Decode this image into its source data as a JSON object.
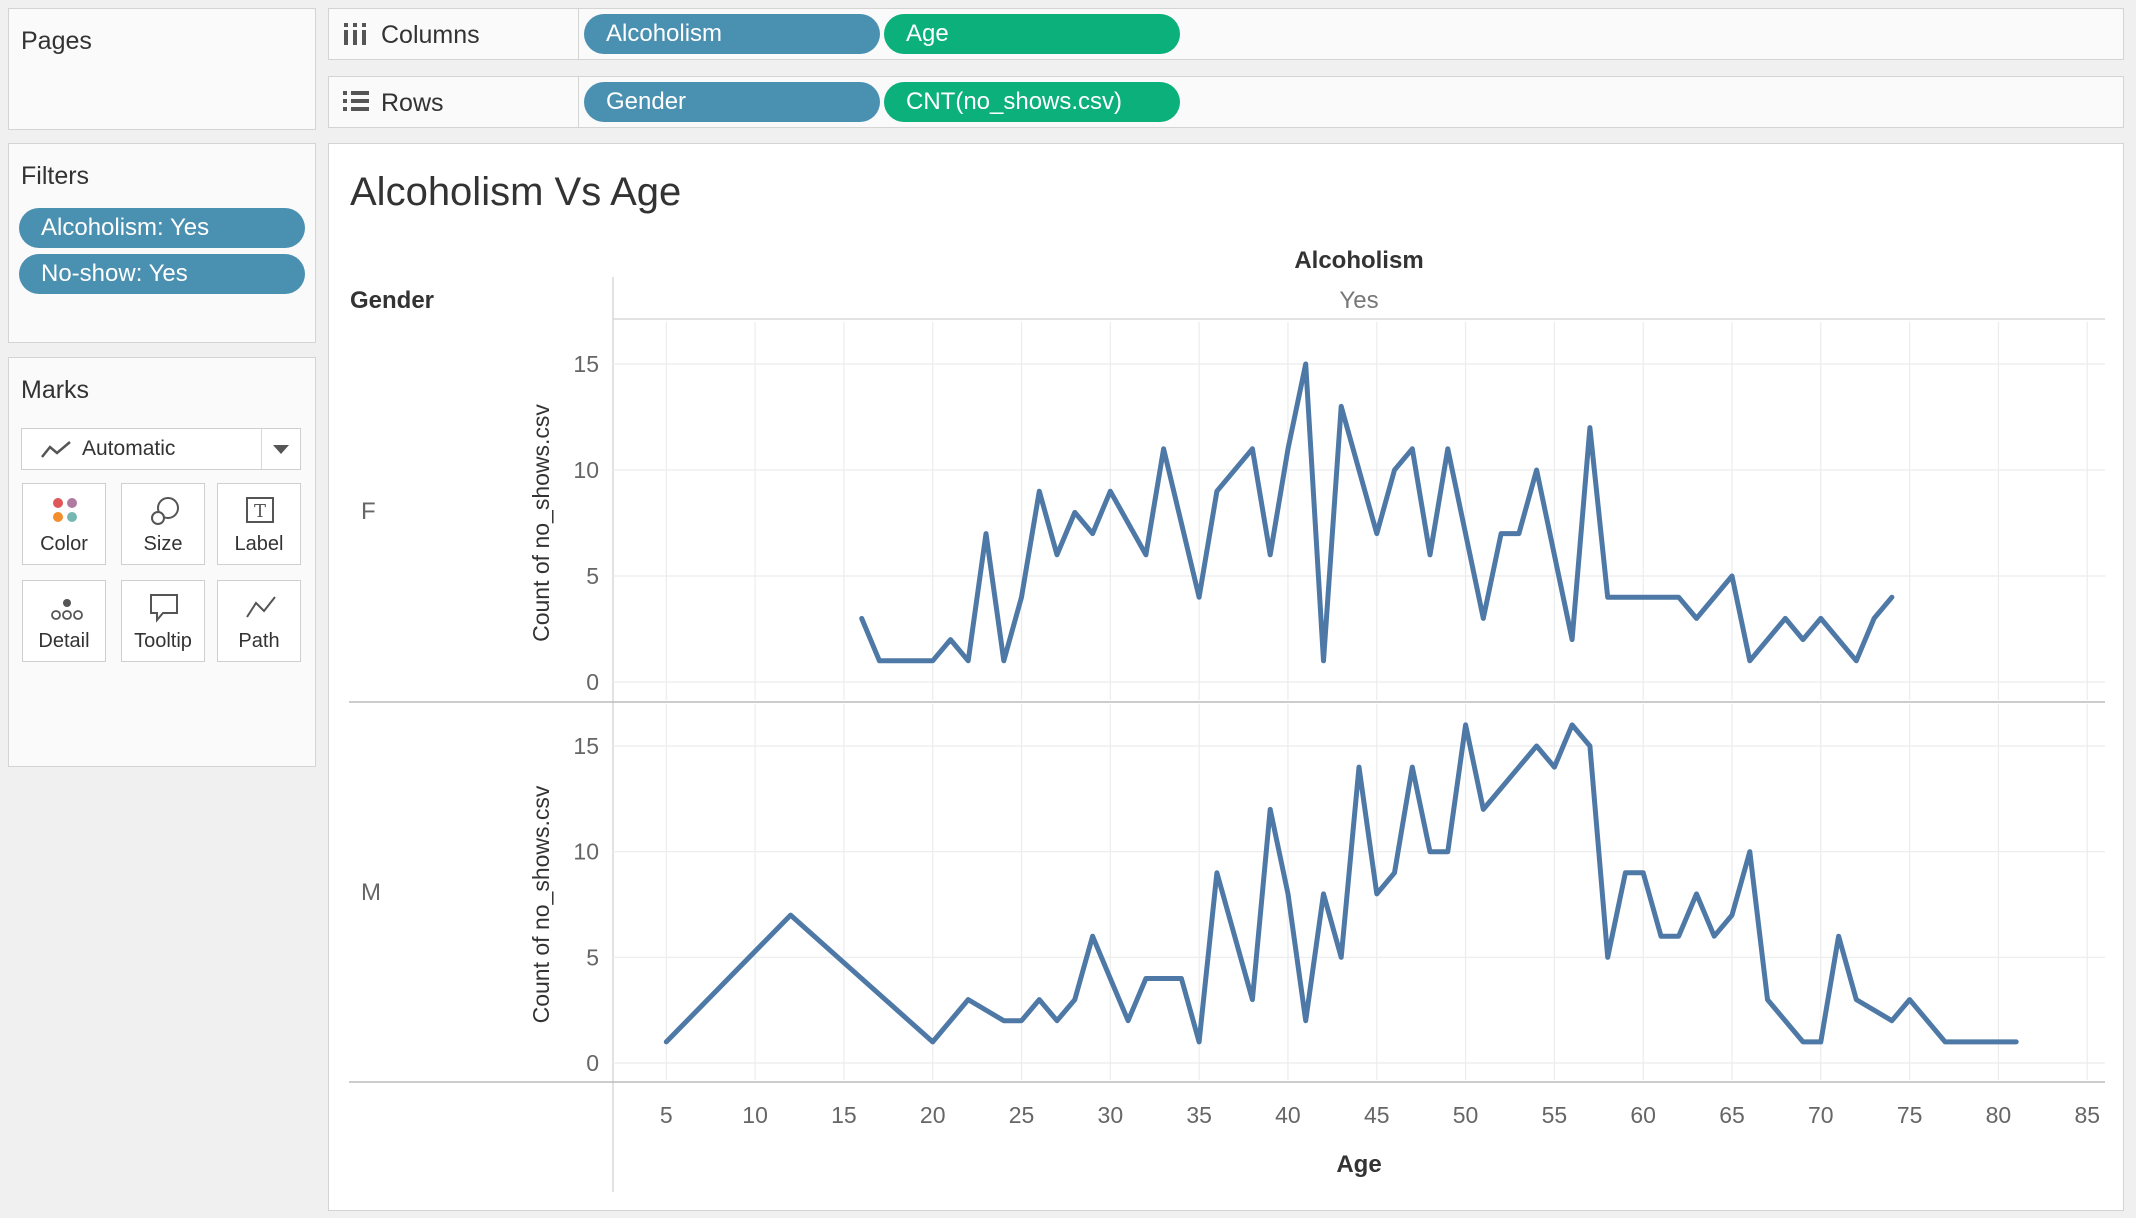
{
  "pages": {
    "title": "Pages"
  },
  "filters": {
    "title": "Filters",
    "items": [
      {
        "label": "Alcoholism: Yes"
      },
      {
        "label": "No-show: Yes"
      }
    ]
  },
  "marks": {
    "title": "Marks",
    "type_label": "Automatic",
    "buttons": [
      {
        "label": "Color",
        "icon": "color-icon"
      },
      {
        "label": "Size",
        "icon": "size-icon"
      },
      {
        "label": "Label",
        "icon": "label-icon"
      },
      {
        "label": "Detail",
        "icon": "detail-icon"
      },
      {
        "label": "Tooltip",
        "icon": "tooltip-icon"
      },
      {
        "label": "Path",
        "icon": "path-icon"
      }
    ]
  },
  "shelves": {
    "columns": {
      "label": "Columns",
      "pills": [
        "Alcoholism",
        "Age"
      ]
    },
    "rows": {
      "label": "Rows",
      "pills": [
        "Gender",
        "CNT(no_shows.csv)"
      ]
    }
  },
  "colors": {
    "dimension": "#4a90b0",
    "measure": "#0bb07a",
    "line": "#4e79a7"
  },
  "chart_data": {
    "type": "line",
    "title": "Alcoholism Vs Age",
    "column_header": "Alcoholism",
    "column_value": "Yes",
    "row_header": "Gender",
    "xlabel": "Age",
    "ylabel": "Count of no_shows.csv",
    "xlim": [
      2,
      86
    ],
    "ylim": [
      0,
      16
    ],
    "x_ticks": [
      5,
      10,
      15,
      20,
      25,
      30,
      35,
      40,
      45,
      50,
      55,
      60,
      65,
      70,
      75,
      80,
      85
    ],
    "y_ticks": [
      0,
      5,
      10,
      15
    ],
    "grid": true,
    "panels": [
      {
        "row_label": "F",
        "x": [
          16,
          17,
          18,
          19,
          20,
          21,
          22,
          23,
          24,
          25,
          26,
          27,
          28,
          29,
          30,
          32,
          33,
          35,
          36,
          38,
          39,
          40,
          41,
          42,
          43,
          45,
          46,
          47,
          48,
          49,
          51,
          52,
          53,
          54,
          56,
          57,
          58,
          59,
          60,
          61,
          62,
          63,
          65,
          66,
          68,
          69,
          70,
          72,
          73,
          74
        ],
        "y": [
          3,
          1,
          1,
          1,
          1,
          2,
          1,
          7,
          1,
          4,
          9,
          6,
          8,
          7,
          9,
          6,
          11,
          4,
          9,
          11,
          6,
          11,
          15,
          1,
          13,
          7,
          10,
          11,
          6,
          11,
          3,
          7,
          7,
          10,
          2,
          12,
          4,
          4,
          4,
          4,
          4,
          3,
          5,
          1,
          3,
          2,
          3,
          1,
          3,
          4
        ]
      },
      {
        "row_label": "M",
        "x": [
          5,
          12,
          20,
          22,
          24,
          25,
          26,
          27,
          28,
          29,
          30,
          31,
          32,
          33,
          34,
          35,
          36,
          38,
          39,
          40,
          41,
          42,
          43,
          44,
          45,
          46,
          47,
          48,
          49,
          50,
          51,
          54,
          55,
          56,
          57,
          58,
          59,
          60,
          61,
          62,
          63,
          64,
          65,
          66,
          67,
          69,
          70,
          71,
          72,
          74,
          75,
          77,
          80,
          81
        ],
        "y": [
          1,
          7,
          1,
          3,
          2,
          2,
          3,
          2,
          3,
          6,
          4,
          2,
          4,
          4,
          4,
          1,
          9,
          3,
          12,
          8,
          2,
          8,
          5,
          14,
          8,
          9,
          14,
          10,
          10,
          16,
          12,
          15,
          14,
          16,
          15,
          5,
          9,
          9,
          6,
          6,
          8,
          6,
          7,
          10,
          3,
          1,
          1,
          6,
          3,
          2,
          3,
          1,
          1,
          1
        ]
      }
    ]
  }
}
